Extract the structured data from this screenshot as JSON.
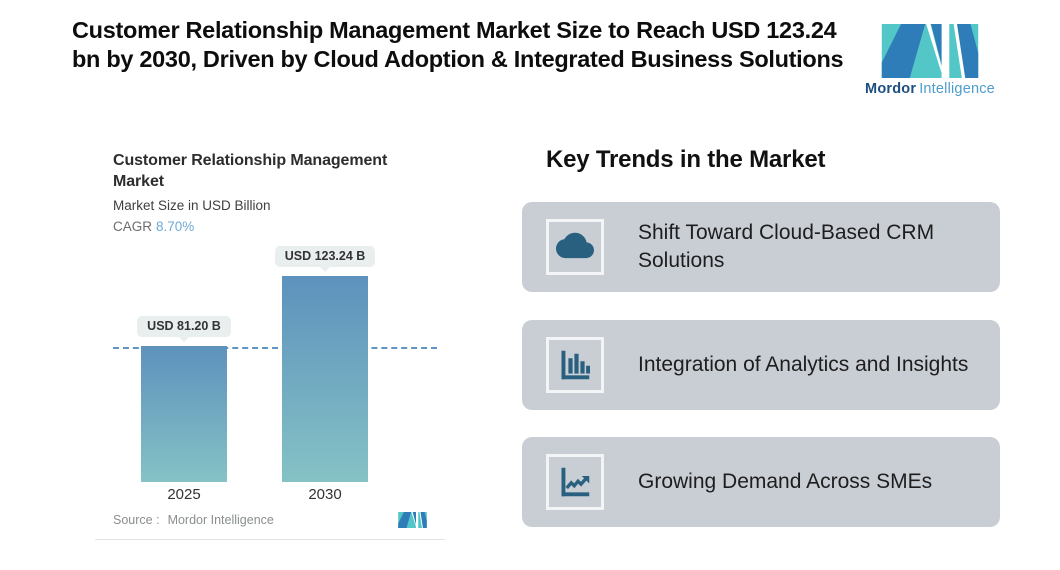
{
  "header": {
    "headline": "Customer Relationship Management Market Size to Reach USD 123.24 bn by 2030, Driven by Cloud Adoption & Integrated Business Solutions",
    "brand": {
      "bold": "Mordor",
      "light": "Intelligence"
    }
  },
  "chart_data": {
    "type": "bar",
    "title": "Customer Relationship Management Market",
    "subtitle": "Market Size in USD Billion",
    "cagr_label": "CAGR",
    "cagr_value": "8.70%",
    "categories": [
      "2025",
      "2030"
    ],
    "values": [
      81.2,
      123.24
    ],
    "bar_labels": [
      "USD 81.20 B",
      "USD 123.24 B"
    ],
    "ylim": [
      0,
      123.24
    ],
    "reference_line_value": 81.2,
    "grid": "off",
    "legend": "none",
    "source_label": "Source :",
    "source_value": "Mordor Intelligence"
  },
  "trends": {
    "heading": "Key Trends in the Market",
    "items": [
      {
        "icon": "cloud-icon",
        "label": "Shift Toward Cloud-Based CRM Solutions"
      },
      {
        "icon": "bar-chart-icon",
        "label": "Integration of Analytics and Insights"
      },
      {
        "icon": "line-chart-icon",
        "label": "Growing Demand Across SMEs"
      }
    ]
  },
  "colors": {
    "brand_teal": "#53c6c8",
    "brand_blue": "#2e7cb8",
    "bar_gradient_top": "#5d92bd",
    "bar_gradient_bottom": "#85c2c5",
    "dashed_line": "#6094c2",
    "cagr_accent": "#6fa9d6",
    "callout_bg": "#e9efee",
    "trend_card_bg": "#c9ced5",
    "trend_icon": "#2a607f"
  }
}
